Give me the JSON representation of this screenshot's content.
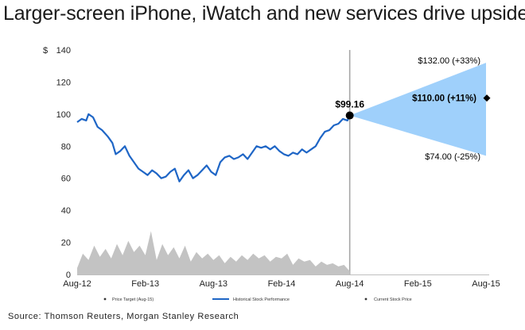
{
  "title": "Larger-screen iPhone, iWatch and new services drive upside",
  "source": "Source: Thomson Reuters, Morgan Stanley Research",
  "chart_data": {
    "type": "line",
    "title": "",
    "ylabel": "$",
    "ylim": [
      0,
      140
    ],
    "yticks": [
      "0",
      "20",
      "40",
      "60",
      "80",
      "100",
      "120",
      "140"
    ],
    "x_ticks": [
      {
        "label": "Aug-12",
        "t": 0
      },
      {
        "label": "Feb-13",
        "t": 6
      },
      {
        "label": "Aug-13",
        "t": 12
      },
      {
        "label": "Feb-14",
        "t": 18
      },
      {
        "label": "Aug-14",
        "t": 24
      },
      {
        "label": "Feb-15",
        "t": 30
      },
      {
        "label": "Aug-15",
        "t": 36
      }
    ],
    "colors": {
      "line": "#1f66c6",
      "cone": "#9fd0fb",
      "volume": "#c3c3c3",
      "divider": "#a6a6a6"
    },
    "series": [
      {
        "name": "Historical Stock Performance",
        "x": [
          0,
          0.4,
          0.8,
          1.0,
          1.4,
          1.8,
          2.2,
          2.7,
          3.1,
          3.4,
          3.8,
          4.2,
          4.6,
          5.0,
          5.4,
          5.8,
          6.2,
          6.6,
          7.0,
          7.4,
          7.8,
          8.2,
          8.6,
          9.0,
          9.4,
          9.8,
          10.2,
          10.6,
          11.0,
          11.4,
          11.8,
          12.2,
          12.6,
          13.0,
          13.4,
          13.8,
          14.2,
          14.6,
          15.0,
          15.4,
          15.8,
          16.2,
          16.6,
          17.0,
          17.4,
          17.8,
          18.2,
          18.6,
          19.0,
          19.4,
          19.8,
          20.2,
          20.6,
          21.0,
          21.4,
          21.8,
          22.2,
          22.6,
          23.0,
          23.4,
          23.8,
          24.0
        ],
        "values": [
          95,
          97,
          96,
          100,
          98,
          92,
          90,
          86,
          82,
          75,
          77,
          80,
          74,
          70,
          66,
          64,
          62,
          65,
          63,
          60,
          61,
          64,
          66,
          58,
          62,
          65,
          60,
          62,
          65,
          68,
          64,
          62,
          70,
          73,
          74,
          72,
          73,
          75,
          72,
          76,
          80,
          79,
          80,
          78,
          80,
          77,
          75,
          74,
          76,
          75,
          78,
          76,
          78,
          80,
          85,
          89,
          90,
          93,
          94,
          97,
          96,
          99.16
        ]
      }
    ],
    "current_price": {
      "name": "Current Stock Price",
      "x": 24,
      "value": 99.16,
      "label": "$99.16"
    },
    "price_target": {
      "name": "Price Target (Aug-15)",
      "x": 36,
      "base": {
        "value": 110.0,
        "label": "$110.00 (+11%)"
      },
      "bull": {
        "value": 132.0,
        "label": "$132.00 (+33%)"
      },
      "bear": {
        "value": 74.0,
        "label": "$74.00 (-25%)"
      }
    },
    "volume": {
      "x": [
        0,
        0.5,
        1.0,
        1.5,
        2.0,
        2.5,
        3.0,
        3.5,
        4.0,
        4.5,
        5.0,
        5.5,
        6.0,
        6.5,
        7.0,
        7.5,
        8.0,
        8.5,
        9.0,
        9.5,
        10.0,
        10.5,
        11.0,
        11.5,
        12.0,
        12.5,
        13.0,
        13.5,
        14.0,
        14.5,
        15.0,
        15.5,
        16.0,
        16.5,
        17.0,
        17.5,
        18.0,
        18.5,
        19.0,
        19.5,
        20.0,
        20.5,
        21.0,
        21.5,
        22.0,
        22.5,
        23.0,
        23.5,
        24.0
      ],
      "values": [
        4,
        13,
        9,
        18,
        11,
        16,
        10,
        19,
        12,
        21,
        14,
        18,
        12,
        27,
        9,
        19,
        12,
        17,
        10,
        18,
        8,
        14,
        10,
        13,
        9,
        12,
        7,
        11,
        8,
        12,
        9,
        13,
        10,
        12,
        8,
        11,
        10,
        13,
        6,
        10,
        8,
        9,
        5,
        8,
        6,
        7,
        5,
        6,
        2
      ]
    },
    "legend": [
      {
        "label": "Price Target (Aug-15)",
        "style": "dot"
      },
      {
        "label": "Historical Stock Performance",
        "style": "line"
      },
      {
        "label": "Current Stock Price",
        "style": "dot"
      }
    ],
    "legend_position": "bottom",
    "grid": false
  }
}
